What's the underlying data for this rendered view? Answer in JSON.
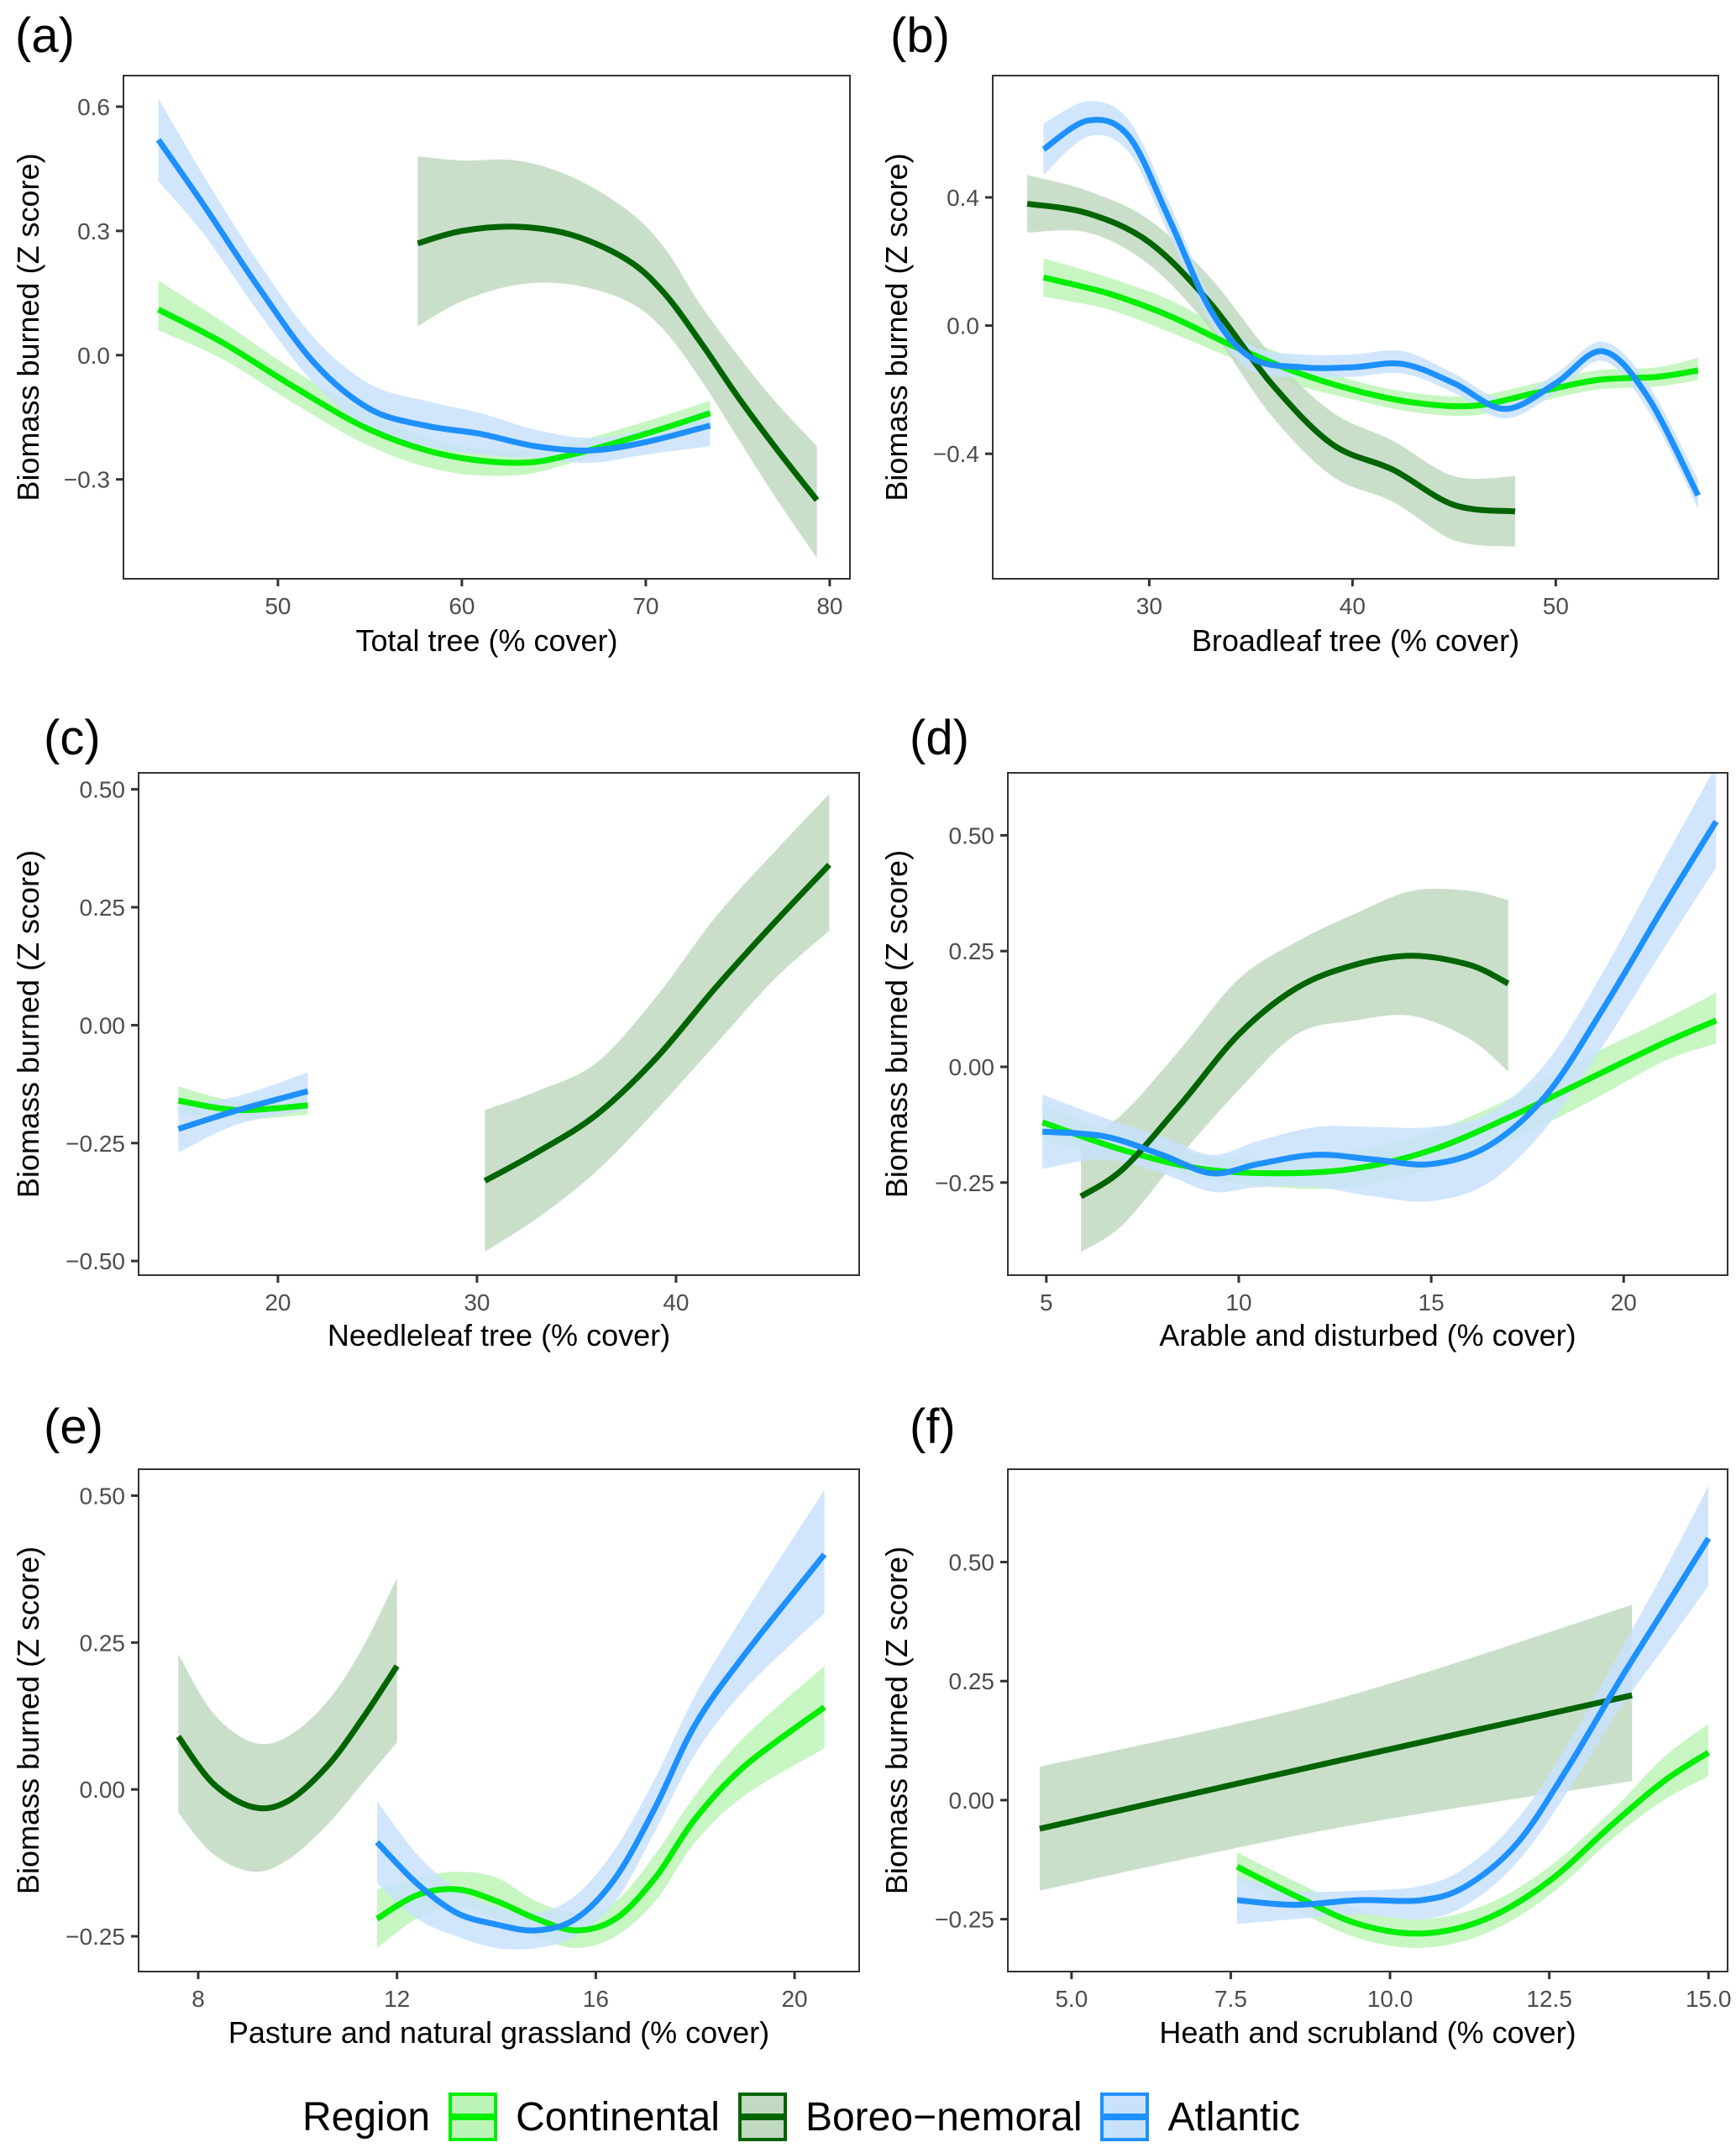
{
  "figure": {
    "legend": {
      "title": "Region",
      "items": [
        {
          "key": "continental",
          "label": "Continental",
          "line": "#00ee00",
          "fill": "#bdf5b8",
          "border": "#00ee00"
        },
        {
          "key": "boreo",
          "label": "Boreo−nemoral",
          "line": "#006400",
          "fill": "#c1d9c1",
          "border": "#006400"
        },
        {
          "key": "atlantic",
          "label": "Atlantic",
          "line": "#1e90ff",
          "fill": "#c9e2fb",
          "border": "#1e90ff"
        }
      ]
    }
  },
  "chart_data": [
    {
      "id": "a",
      "letter": "(a)",
      "type": "line",
      "xlabel": "Total tree (% cover)",
      "ylabel": "Biomass burned (Z score)",
      "xlim": [
        41.6,
        81.1
      ],
      "ylim": [
        -0.54,
        0.675
      ],
      "xticks": [
        50,
        60,
        70,
        80
      ],
      "xtick_labels": [
        "50",
        "60",
        "70",
        "80"
      ],
      "yticks": [
        0.6,
        0.3,
        0.0,
        -0.3
      ],
      "ytick_labels": [
        "0.6",
        "0.3",
        "0.0",
        "−0.3"
      ],
      "series": [
        {
          "name": "Continental",
          "key": "continental",
          "x": [
            43.5,
            47,
            51,
            55,
            59,
            63,
            66,
            70,
            73.5
          ],
          "y": [
            0.11,
            0.03,
            -0.08,
            -0.18,
            -0.24,
            -0.26,
            -0.24,
            -0.19,
            -0.14
          ],
          "lo": [
            0.06,
            -0.01,
            -0.12,
            -0.22,
            -0.28,
            -0.29,
            -0.26,
            -0.21,
            -0.17
          ],
          "hi": [
            0.18,
            0.08,
            -0.04,
            -0.14,
            -0.21,
            -0.23,
            -0.21,
            -0.16,
            -0.11
          ]
        },
        {
          "name": "Boreo-nemoral",
          "key": "boreo",
          "x": [
            57.6,
            60,
            63,
            66,
            69,
            71,
            73,
            75,
            77,
            79.3
          ],
          "y": [
            0.27,
            0.3,
            0.31,
            0.29,
            0.23,
            0.15,
            0.03,
            -0.1,
            -0.22,
            -0.35
          ],
          "lo": [
            0.07,
            0.13,
            0.17,
            0.17,
            0.13,
            0.06,
            -0.06,
            -0.2,
            -0.34,
            -0.49
          ],
          "hi": [
            0.48,
            0.47,
            0.47,
            0.43,
            0.35,
            0.26,
            0.12,
            0.0,
            -0.11,
            -0.22
          ]
        },
        {
          "name": "Atlantic",
          "key": "atlantic",
          "x": [
            43.5,
            46,
            49,
            52,
            55,
            58,
            61,
            64,
            67,
            70,
            73.5
          ],
          "y": [
            0.52,
            0.36,
            0.16,
            -0.02,
            -0.13,
            -0.17,
            -0.19,
            -0.22,
            -0.23,
            -0.21,
            -0.17
          ],
          "lo": [
            0.42,
            0.29,
            0.1,
            -0.07,
            -0.18,
            -0.22,
            -0.24,
            -0.25,
            -0.26,
            -0.24,
            -0.22
          ],
          "hi": [
            0.62,
            0.43,
            0.22,
            0.04,
            -0.07,
            -0.11,
            -0.14,
            -0.18,
            -0.2,
            -0.18,
            -0.13
          ]
        }
      ]
    },
    {
      "id": "b",
      "letter": "(b)",
      "type": "line",
      "xlabel": "Broadleaf tree (% cover)",
      "ylabel": "Biomass burned (Z score)",
      "xlim": [
        22.3,
        58.0
      ],
      "ylim": [
        -0.79,
        0.78
      ],
      "xticks": [
        30,
        40,
        50
      ],
      "xtick_labels": [
        "30",
        "40",
        "50"
      ],
      "yticks": [
        0.4,
        0.0,
        -0.4
      ],
      "ytick_labels": [
        "0.4",
        "0.0",
        "−0.4"
      ],
      "series": [
        {
          "name": "Continental",
          "key": "continental",
          "x": [
            24.8,
            28,
            31,
            34,
            37,
            40,
            43,
            46,
            49,
            52,
            55,
            57
          ],
          "y": [
            0.15,
            0.1,
            0.03,
            -0.06,
            -0.14,
            -0.2,
            -0.24,
            -0.25,
            -0.21,
            -0.17,
            -0.16,
            -0.14
          ],
          "lo": [
            0.09,
            0.05,
            -0.02,
            -0.1,
            -0.18,
            -0.23,
            -0.27,
            -0.28,
            -0.24,
            -0.2,
            -0.19,
            -0.17
          ],
          "hi": [
            0.21,
            0.15,
            0.08,
            -0.02,
            -0.1,
            -0.17,
            -0.21,
            -0.22,
            -0.18,
            -0.14,
            -0.13,
            -0.1
          ]
        },
        {
          "name": "Boreo-nemoral",
          "key": "boreo",
          "x": [
            24,
            27,
            30,
            33,
            36,
            39,
            42,
            45,
            48
          ],
          "y": [
            0.38,
            0.35,
            0.26,
            0.07,
            -0.18,
            -0.37,
            -0.45,
            -0.56,
            -0.58
          ],
          "lo": [
            0.29,
            0.29,
            0.19,
            -0.01,
            -0.28,
            -0.47,
            -0.55,
            -0.67,
            -0.69
          ],
          "hi": [
            0.47,
            0.42,
            0.33,
            0.15,
            -0.09,
            -0.27,
            -0.36,
            -0.47,
            -0.47
          ]
        },
        {
          "name": "Atlantic",
          "key": "atlantic",
          "x": [
            24.8,
            27,
            29,
            31,
            33,
            35,
            37.5,
            40,
            42.5,
            45,
            47.5,
            50,
            52.3,
            54.5,
            57
          ],
          "y": [
            0.55,
            0.64,
            0.59,
            0.33,
            0.05,
            -0.1,
            -0.13,
            -0.13,
            -0.12,
            -0.18,
            -0.26,
            -0.18,
            -0.08,
            -0.22,
            -0.53
          ],
          "lo": [
            0.47,
            0.59,
            0.54,
            0.28,
            0.01,
            -0.14,
            -0.16,
            -0.16,
            -0.15,
            -0.21,
            -0.29,
            -0.21,
            -0.11,
            -0.26,
            -0.57
          ],
          "hi": [
            0.63,
            0.7,
            0.64,
            0.38,
            0.09,
            -0.06,
            -0.09,
            -0.09,
            -0.08,
            -0.15,
            -0.23,
            -0.15,
            -0.05,
            -0.18,
            -0.48
          ]
        }
      ]
    },
    {
      "id": "c",
      "letter": "(c)",
      "type": "line",
      "xlabel": "Needleleaf tree (% cover)",
      "ylabel": "Biomass burned (Z score)",
      "xlim": [
        13.0,
        49.2
      ],
      "ylim": [
        -0.53,
        0.535
      ],
      "xticks": [
        20,
        30,
        40
      ],
      "xtick_labels": [
        "20",
        "30",
        "40"
      ],
      "yticks": [
        0.5,
        0.25,
        0.0,
        -0.25,
        -0.5
      ],
      "ytick_labels": [
        "0.50",
        "0.25",
        "0.00",
        "−0.25",
        "−0.50"
      ],
      "series": [
        {
          "name": "Continental",
          "key": "continental",
          "x": [
            15,
            18,
            21.5
          ],
          "y": [
            -0.16,
            -0.18,
            -0.17
          ],
          "lo": [
            -0.19,
            -0.2,
            -0.19
          ],
          "hi": [
            -0.13,
            -0.16,
            -0.14
          ]
        },
        {
          "name": "Boreo-nemoral",
          "key": "boreo",
          "x": [
            30.4,
            33,
            36,
            39,
            42,
            45,
            47.7
          ],
          "y": [
            -0.33,
            -0.27,
            -0.19,
            -0.07,
            0.08,
            0.22,
            0.34
          ],
          "lo": [
            -0.48,
            -0.41,
            -0.31,
            -0.18,
            -0.04,
            0.1,
            0.2
          ],
          "hi": [
            -0.18,
            -0.14,
            -0.08,
            0.06,
            0.23,
            0.37,
            0.49
          ]
        },
        {
          "name": "Atlantic",
          "key": "atlantic",
          "x": [
            15,
            18,
            21.5
          ],
          "y": [
            -0.22,
            -0.18,
            -0.14
          ],
          "lo": [
            -0.27,
            -0.21,
            -0.18
          ],
          "hi": [
            -0.17,
            -0.15,
            -0.1
          ]
        }
      ]
    },
    {
      "id": "d",
      "letter": "(d)",
      "type": "line",
      "xlabel": "Arable and disturbed (% cover)",
      "ylabel": "Biomass burned (Z score)",
      "xlim": [
        4.0,
        22.7
      ],
      "ylim": [
        -0.45,
        0.635
      ],
      "xticks": [
        5,
        10,
        15,
        20
      ],
      "xtick_labels": [
        "5",
        "10",
        "15",
        "20"
      ],
      "yticks": [
        0.5,
        0.25,
        0.0,
        -0.25
      ],
      "ytick_labels": [
        "0.50",
        "0.25",
        "0.00",
        "−0.25"
      ],
      "series": [
        {
          "name": "Continental",
          "key": "continental",
          "x": [
            4.9,
            7,
            9,
            11,
            13,
            15,
            17,
            19,
            21,
            22.4
          ],
          "y": [
            -0.12,
            -0.18,
            -0.22,
            -0.23,
            -0.22,
            -0.18,
            -0.11,
            -0.03,
            0.05,
            0.1
          ],
          "lo": [
            -0.16,
            -0.2,
            -0.24,
            -0.26,
            -0.26,
            -0.22,
            -0.16,
            -0.08,
            0.01,
            0.05
          ],
          "hi": [
            -0.08,
            -0.15,
            -0.19,
            -0.2,
            -0.18,
            -0.14,
            -0.07,
            0.02,
            0.1,
            0.16
          ]
        },
        {
          "name": "Boreo-nemoral",
          "key": "boreo",
          "x": [
            5.9,
            7,
            8.5,
            10,
            11.5,
            13,
            14.5,
            16,
            17
          ],
          "y": [
            -0.28,
            -0.22,
            -0.08,
            0.07,
            0.17,
            0.22,
            0.24,
            0.22,
            0.18
          ],
          "lo": [
            -0.4,
            -0.34,
            -0.19,
            -0.05,
            0.07,
            0.1,
            0.11,
            0.06,
            -0.01
          ],
          "hi": [
            -0.16,
            -0.1,
            0.04,
            0.19,
            0.27,
            0.33,
            0.38,
            0.38,
            0.36
          ]
        },
        {
          "name": "Atlantic",
          "key": "atlantic",
          "x": [
            4.9,
            6.5,
            8,
            9.3,
            10.5,
            12,
            13.5,
            15,
            16.5,
            18,
            19.5,
            21,
            22.4
          ],
          "y": [
            -0.14,
            -0.15,
            -0.19,
            -0.23,
            -0.21,
            -0.19,
            -0.2,
            -0.21,
            -0.17,
            -0.06,
            0.13,
            0.34,
            0.53
          ],
          "lo": [
            -0.22,
            -0.2,
            -0.23,
            -0.27,
            -0.26,
            -0.26,
            -0.28,
            -0.29,
            -0.25,
            -0.13,
            0.05,
            0.25,
            0.43
          ],
          "hi": [
            -0.06,
            -0.11,
            -0.15,
            -0.19,
            -0.16,
            -0.13,
            -0.13,
            -0.13,
            -0.1,
            0.01,
            0.21,
            0.44,
            0.65
          ]
        }
      ]
    },
    {
      "id": "e",
      "letter": "(e)",
      "type": "line",
      "xlabel": "Pasture and natural grassland (% cover)",
      "ylabel": "Biomass burned (Z score)",
      "xlim": [
        6.8,
        21.3
      ],
      "ylim": [
        -0.31,
        0.545
      ],
      "xticks": [
        8,
        12,
        16,
        20
      ],
      "xtick_labels": [
        "8",
        "12",
        "16",
        "20"
      ],
      "yticks": [
        0.5,
        0.25,
        0.0,
        -0.25
      ],
      "ytick_labels": [
        "0.50",
        "0.25",
        "0.00",
        "−0.25"
      ],
      "series": [
        {
          "name": "Continental",
          "key": "continental",
          "x": [
            11.6,
            12.4,
            13.2,
            14,
            14.8,
            15.6,
            16.4,
            17.2,
            18,
            19,
            20.6
          ],
          "y": [
            -0.22,
            -0.18,
            -0.17,
            -0.19,
            -0.22,
            -0.24,
            -0.22,
            -0.15,
            -0.05,
            0.04,
            0.14
          ],
          "lo": [
            -0.27,
            -0.22,
            -0.2,
            -0.22,
            -0.25,
            -0.27,
            -0.25,
            -0.19,
            -0.09,
            -0.01,
            0.07
          ],
          "hi": [
            -0.17,
            -0.15,
            -0.14,
            -0.15,
            -0.19,
            -0.21,
            -0.19,
            -0.11,
            -0.01,
            0.09,
            0.21
          ]
        },
        {
          "name": "Boreo-nemoral",
          "key": "boreo",
          "x": [
            7.6,
            8.3,
            9.1,
            9.8,
            10.6,
            11.3,
            12
          ],
          "y": [
            0.09,
            0.01,
            -0.03,
            -0.02,
            0.04,
            0.12,
            0.21
          ],
          "lo": [
            -0.04,
            -0.11,
            -0.14,
            -0.12,
            -0.06,
            0.01,
            0.08
          ],
          "hi": [
            0.23,
            0.13,
            0.08,
            0.09,
            0.15,
            0.24,
            0.36
          ]
        },
        {
          "name": "Atlantic",
          "key": "atlantic",
          "x": [
            11.6,
            12.4,
            13.2,
            14,
            14.8,
            15.6,
            16.4,
            17.2,
            18,
            19,
            20.6
          ],
          "y": [
            -0.09,
            -0.16,
            -0.21,
            -0.23,
            -0.24,
            -0.22,
            -0.15,
            -0.03,
            0.11,
            0.23,
            0.4
          ],
          "lo": [
            -0.16,
            -0.22,
            -0.25,
            -0.27,
            -0.27,
            -0.25,
            -0.19,
            -0.07,
            0.06,
            0.17,
            0.3
          ],
          "hi": [
            -0.02,
            -0.11,
            -0.17,
            -0.2,
            -0.21,
            -0.18,
            -0.1,
            0.02,
            0.16,
            0.3,
            0.51
          ]
        }
      ]
    },
    {
      "id": "f",
      "letter": "(f)",
      "type": "line",
      "xlabel": "Heath and scrubland (% cover)",
      "ylabel": "Biomass burned (Z score)",
      "xlim": [
        4.0,
        15.3
      ],
      "ylim": [
        -0.36,
        0.695
      ],
      "xticks": [
        5,
        7.5,
        10,
        12.5,
        15
      ],
      "xtick_labels": [
        "5.0",
        "7.5",
        "10.0",
        "12.5",
        "15.0"
      ],
      "yticks": [
        0.5,
        0.25,
        0.0,
        -0.25
      ],
      "ytick_labels": [
        "0.50",
        "0.25",
        "0.00",
        "−0.25"
      ],
      "series": [
        {
          "name": "Continental",
          "key": "continental",
          "x": [
            7.6,
            8.5,
            9.5,
            10.5,
            11.5,
            12.5,
            13.5,
            14.3,
            15
          ],
          "y": [
            -0.14,
            -0.2,
            -0.26,
            -0.28,
            -0.25,
            -0.17,
            -0.05,
            0.04,
            0.1
          ],
          "lo": [
            -0.17,
            -0.23,
            -0.29,
            -0.31,
            -0.28,
            -0.2,
            -0.08,
            0.0,
            0.05
          ],
          "hi": [
            -0.11,
            -0.17,
            -0.23,
            -0.25,
            -0.22,
            -0.14,
            -0.02,
            0.09,
            0.16
          ]
        },
        {
          "name": "Boreo-nemoral",
          "key": "boreo",
          "x": [
            4.5,
            9.1,
            13.8
          ],
          "y": [
            -0.06,
            0.08,
            0.22
          ],
          "lo": [
            -0.19,
            -0.06,
            0.04
          ],
          "hi": [
            0.07,
            0.21,
            0.41
          ]
        },
        {
          "name": "Atlantic",
          "key": "atlantic",
          "x": [
            7.6,
            8.5,
            9.5,
            10.5,
            11.2,
            12,
            12.8,
            13.6,
            14.3,
            15
          ],
          "y": [
            -0.21,
            -0.22,
            -0.21,
            -0.21,
            -0.18,
            -0.09,
            0.07,
            0.25,
            0.4,
            0.55
          ],
          "lo": [
            -0.26,
            -0.25,
            -0.24,
            -0.25,
            -0.22,
            -0.13,
            0.02,
            0.19,
            0.32,
            0.45
          ],
          "hi": [
            -0.16,
            -0.19,
            -0.19,
            -0.18,
            -0.14,
            -0.04,
            0.12,
            0.31,
            0.48,
            0.66
          ]
        }
      ]
    }
  ]
}
